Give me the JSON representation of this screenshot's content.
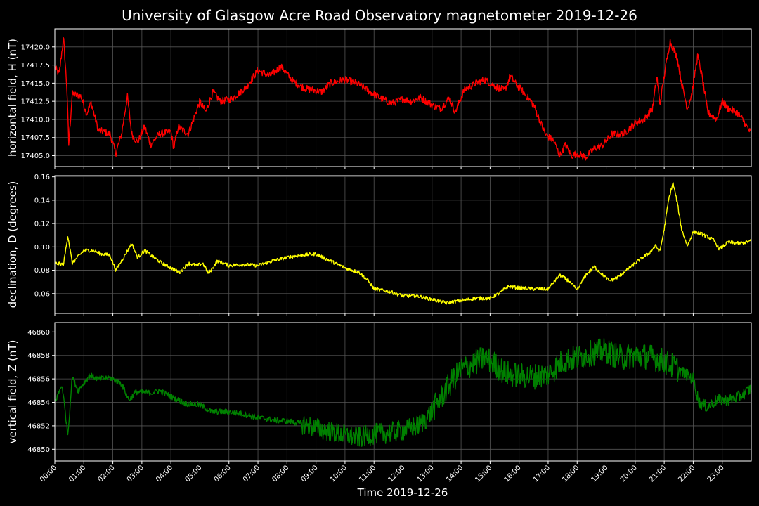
{
  "chart_data": {
    "type": "line",
    "title": "University of Glasgow Acre Road Observatory magnetometer 2019-12-26",
    "xlabel": "Time 2019-12-26",
    "x_tick_labels": [
      "00:00",
      "01:00",
      "02:00",
      "03:00",
      "04:00",
      "05:00",
      "06:00",
      "07:00",
      "08:00",
      "09:00",
      "10:00",
      "11:00",
      "12:00",
      "13:00",
      "14:00",
      "15:00",
      "16:00",
      "17:00",
      "18:00",
      "19:00",
      "20:00",
      "21:00",
      "22:00",
      "23:00"
    ],
    "xlim_hours": [
      0,
      24
    ],
    "grid": true,
    "background": "#000000",
    "panels": [
      {
        "id": "H",
        "ylabel": "horizontal field, H (nT)",
        "color": "#ff0000",
        "ylim": [
          17403.5,
          17422.5
        ],
        "yticks": [
          17405.0,
          17407.5,
          17410.0,
          17412.5,
          17415.0,
          17417.5,
          17420.0
        ],
        "ytick_labels": [
          "17405.0",
          "17407.5",
          "17410.0",
          "17412.5",
          "17415.0",
          "17417.5",
          "17420.0"
        ],
        "noise": 0.5,
        "points": [
          [
            0,
            17417.2
          ],
          [
            0.15,
            17416.2
          ],
          [
            0.3,
            17421.3
          ],
          [
            0.42,
            17414
          ],
          [
            0.48,
            17406.5
          ],
          [
            0.6,
            17413.5
          ],
          [
            0.9,
            17413.2
          ],
          [
            1.1,
            17410.8
          ],
          [
            1.25,
            17412.3
          ],
          [
            1.5,
            17408.5
          ],
          [
            1.9,
            17408
          ],
          [
            2.1,
            17405.3
          ],
          [
            2.3,
            17408
          ],
          [
            2.5,
            17413.2
          ],
          [
            2.65,
            17408
          ],
          [
            2.85,
            17406.8
          ],
          [
            3.1,
            17409
          ],
          [
            3.3,
            17406.5
          ],
          [
            3.6,
            17408
          ],
          [
            4.0,
            17408.3
          ],
          [
            4.1,
            17406
          ],
          [
            4.25,
            17409
          ],
          [
            4.6,
            17408
          ],
          [
            5.0,
            17412.5
          ],
          [
            5.2,
            17411
          ],
          [
            5.45,
            17413.8
          ],
          [
            5.7,
            17412.5
          ],
          [
            6.1,
            17412.8
          ],
          [
            6.6,
            17414.5
          ],
          [
            7.0,
            17416.8
          ],
          [
            7.4,
            17416
          ],
          [
            7.8,
            17417.3
          ],
          [
            8.2,
            17415.3
          ],
          [
            8.6,
            17414.3
          ],
          [
            9.2,
            17413.8
          ],
          [
            9.5,
            17415
          ],
          [
            10.0,
            17415.5
          ],
          [
            10.4,
            17415
          ],
          [
            10.8,
            17414
          ],
          [
            11.2,
            17413
          ],
          [
            11.6,
            17412.2
          ],
          [
            12.0,
            17412.8
          ],
          [
            12.3,
            17412.5
          ],
          [
            12.6,
            17413
          ],
          [
            13.0,
            17412
          ],
          [
            13.3,
            17411.5
          ],
          [
            13.6,
            17413
          ],
          [
            13.8,
            17411
          ],
          [
            14.1,
            17414
          ],
          [
            14.5,
            17415
          ],
          [
            14.8,
            17415.5
          ],
          [
            15.2,
            17414.5
          ],
          [
            15.5,
            17414
          ],
          [
            15.7,
            17416
          ],
          [
            15.9,
            17414.8
          ],
          [
            16.1,
            17414
          ],
          [
            16.5,
            17412
          ],
          [
            16.9,
            17408
          ],
          [
            17.2,
            17407
          ],
          [
            17.4,
            17405
          ],
          [
            17.6,
            17406.5
          ],
          [
            17.8,
            17405
          ],
          [
            18.0,
            17405.3
          ],
          [
            18.3,
            17404.8
          ],
          [
            18.6,
            17406
          ],
          [
            18.9,
            17406.5
          ],
          [
            19.2,
            17408
          ],
          [
            19.6,
            17408
          ],
          [
            20.0,
            17409.5
          ],
          [
            20.3,
            17410
          ],
          [
            20.6,
            17411.5
          ],
          [
            20.75,
            17416
          ],
          [
            20.85,
            17412
          ],
          [
            21.0,
            17416
          ],
          [
            21.2,
            17420.8
          ],
          [
            21.45,
            17418.5
          ],
          [
            21.6,
            17415
          ],
          [
            21.8,
            17411.5
          ],
          [
            21.95,
            17413.5
          ],
          [
            22.15,
            17418.8
          ],
          [
            22.3,
            17416
          ],
          [
            22.5,
            17411
          ],
          [
            22.8,
            17410
          ],
          [
            23.0,
            17412.5
          ],
          [
            23.2,
            17411.5
          ],
          [
            23.5,
            17411
          ],
          [
            23.7,
            17410
          ],
          [
            24.0,
            17408
          ]
        ]
      },
      {
        "id": "D",
        "ylabel": "declination, D (degrees)",
        "color": "#ffff00",
        "ylim": [
          0.043,
          0.161
        ],
        "yticks": [
          0.06,
          0.08,
          0.1,
          0.12,
          0.14,
          0.16
        ],
        "ytick_labels": [
          "0.06",
          "0.08",
          "0.10",
          "0.12",
          "0.14",
          "0.16"
        ],
        "noise": 0.0015,
        "points": [
          [
            0,
            0.086
          ],
          [
            0.3,
            0.085
          ],
          [
            0.45,
            0.11
          ],
          [
            0.6,
            0.086
          ],
          [
            1.0,
            0.097
          ],
          [
            1.3,
            0.097
          ],
          [
            1.6,
            0.094
          ],
          [
            1.9,
            0.093
          ],
          [
            2.1,
            0.08
          ],
          [
            2.3,
            0.088
          ],
          [
            2.65,
            0.103
          ],
          [
            2.85,
            0.091
          ],
          [
            3.1,
            0.097
          ],
          [
            3.4,
            0.091
          ],
          [
            3.7,
            0.086
          ],
          [
            4.0,
            0.082
          ],
          [
            4.3,
            0.078
          ],
          [
            4.6,
            0.086
          ],
          [
            4.9,
            0.084
          ],
          [
            5.1,
            0.086
          ],
          [
            5.3,
            0.077
          ],
          [
            5.6,
            0.088
          ],
          [
            6.0,
            0.084
          ],
          [
            6.5,
            0.085
          ],
          [
            7.0,
            0.084
          ],
          [
            7.5,
            0.088
          ],
          [
            8.0,
            0.091
          ],
          [
            8.5,
            0.093
          ],
          [
            9.0,
            0.094
          ],
          [
            9.5,
            0.088
          ],
          [
            10.0,
            0.082
          ],
          [
            10.5,
            0.078
          ],
          [
            10.8,
            0.071
          ],
          [
            11.0,
            0.064
          ],
          [
            11.5,
            0.062
          ],
          [
            12.0,
            0.058
          ],
          [
            12.5,
            0.058
          ],
          [
            13.0,
            0.055
          ],
          [
            13.5,
            0.052
          ],
          [
            14.0,
            0.054
          ],
          [
            14.5,
            0.056
          ],
          [
            15.0,
            0.056
          ],
          [
            15.3,
            0.06
          ],
          [
            15.6,
            0.066
          ],
          [
            16.0,
            0.065
          ],
          [
            16.5,
            0.064
          ],
          [
            17.0,
            0.064
          ],
          [
            17.2,
            0.07
          ],
          [
            17.4,
            0.076
          ],
          [
            17.7,
            0.071
          ],
          [
            18.0,
            0.063
          ],
          [
            18.3,
            0.076
          ],
          [
            18.6,
            0.083
          ],
          [
            18.8,
            0.078
          ],
          [
            19.1,
            0.071
          ],
          [
            19.4,
            0.074
          ],
          [
            19.8,
            0.082
          ],
          [
            20.2,
            0.09
          ],
          [
            20.5,
            0.095
          ],
          [
            20.7,
            0.101
          ],
          [
            20.85,
            0.096
          ],
          [
            21.0,
            0.115
          ],
          [
            21.15,
            0.14
          ],
          [
            21.3,
            0.155
          ],
          [
            21.45,
            0.138
          ],
          [
            21.6,
            0.115
          ],
          [
            21.8,
            0.101
          ],
          [
            22.0,
            0.113
          ],
          [
            22.3,
            0.111
          ],
          [
            22.7,
            0.106
          ],
          [
            22.9,
            0.098
          ],
          [
            23.2,
            0.104
          ],
          [
            23.6,
            0.103
          ],
          [
            24.0,
            0.105
          ]
        ]
      },
      {
        "id": "Z",
        "ylabel": "vertical field, Z (nT)",
        "color": "#008000",
        "ylim": [
          46849.0,
          46860.8
        ],
        "yticks": [
          46850,
          46852,
          46854,
          46856,
          46858,
          46860
        ],
        "ytick_labels": [
          "46850",
          "46852",
          "46854",
          "46856",
          "46858",
          "46860"
        ],
        "noise": 0.3,
        "noise_segments": [
          [
            0,
            0.25
          ],
          [
            8.5,
            0.9
          ],
          [
            13.0,
            1.1
          ],
          [
            15.5,
            1.1
          ],
          [
            21.5,
            0.5
          ]
        ],
        "points": [
          [
            0,
            46854
          ],
          [
            0.25,
            46855.5
          ],
          [
            0.45,
            46851.2
          ],
          [
            0.6,
            46856.2
          ],
          [
            0.8,
            46855
          ],
          [
            1.2,
            46856.3
          ],
          [
            1.5,
            46856
          ],
          [
            1.9,
            46856.1
          ],
          [
            2.3,
            46855.6
          ],
          [
            2.55,
            46854.2
          ],
          [
            2.8,
            46854.9
          ],
          [
            3.3,
            46854.8
          ],
          [
            3.6,
            46855
          ],
          [
            4.0,
            46854.5
          ],
          [
            4.5,
            46853.9
          ],
          [
            5.0,
            46853.8
          ],
          [
            5.4,
            46853.2
          ],
          [
            6.0,
            46853.2
          ],
          [
            6.5,
            46853
          ],
          [
            7.0,
            46852.7
          ],
          [
            7.5,
            46852.5
          ],
          [
            8.0,
            46852.4
          ],
          [
            8.5,
            46852.2
          ],
          [
            9.0,
            46851.8
          ],
          [
            9.5,
            46851.5
          ],
          [
            10.0,
            46851.2
          ],
          [
            10.5,
            46851
          ],
          [
            11.0,
            46851.3
          ],
          [
            11.5,
            46851.4
          ],
          [
            12.0,
            46851.6
          ],
          [
            12.5,
            46852
          ],
          [
            12.8,
            46852.6
          ],
          [
            13.2,
            46854
          ],
          [
            13.6,
            46855.5
          ],
          [
            14.0,
            46856.8
          ],
          [
            14.5,
            46857.4
          ],
          [
            14.8,
            46857.8
          ],
          [
            15.1,
            46857.4
          ],
          [
            15.5,
            46856.5
          ],
          [
            16.0,
            46856.3
          ],
          [
            16.5,
            46856.2
          ],
          [
            17.0,
            46856.4
          ],
          [
            17.5,
            46857.5
          ],
          [
            18.0,
            46857.8
          ],
          [
            18.5,
            46858.2
          ],
          [
            19.0,
            46858.4
          ],
          [
            19.5,
            46857.8
          ],
          [
            20.0,
            46858
          ],
          [
            20.5,
            46857.9
          ],
          [
            21.0,
            46857.5
          ],
          [
            21.5,
            46856.8
          ],
          [
            22.0,
            46856
          ],
          [
            22.2,
            46854
          ],
          [
            22.5,
            46853.6
          ],
          [
            22.8,
            46854.2
          ],
          [
            23.2,
            46854.2
          ],
          [
            23.6,
            46854.5
          ],
          [
            24.0,
            46855.2
          ]
        ]
      }
    ]
  }
}
